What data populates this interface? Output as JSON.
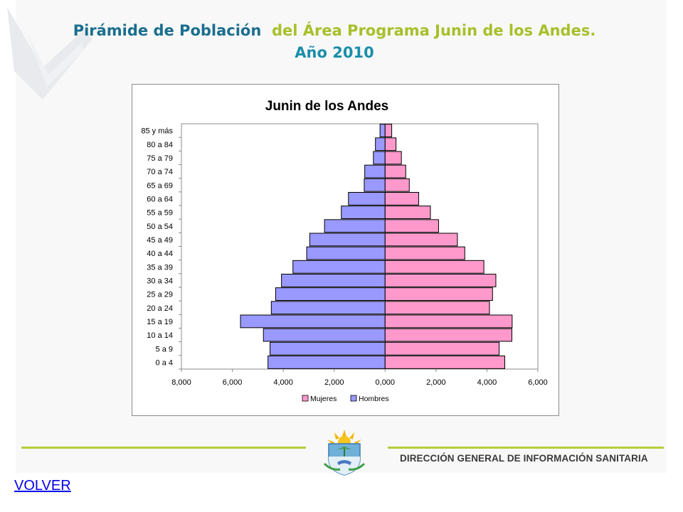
{
  "title": {
    "part1": "Pirámide de Población",
    "part2": "del Área Programa Junin de los Andes.",
    "year": "Año 2010"
  },
  "footer": {
    "org": "DIRECCIÓN GENERAL DE INFORMACIÓN SANITARIA"
  },
  "nav": {
    "back_label": "VOLVER"
  },
  "colors": {
    "mujeres": "#ff99cc",
    "hombres": "#9999ff",
    "accent": "#b7cc3a"
  },
  "chart_data": {
    "type": "bar",
    "orientation": "horizontal-population-pyramid",
    "title": "Junin de los Andes",
    "categories": [
      "0 a 4",
      "5 a 9",
      "10 a 14",
      "15 a 19",
      "20 a 24",
      "25 a 29",
      "30 a 34",
      "35 a 39",
      "40 a 44",
      "45 a 49",
      "50 a 54",
      "55 a 59",
      "60 a 64",
      "65 a 69",
      "70 a 74",
      "75 a 79",
      "80 a 84",
      "85 y más"
    ],
    "series": [
      {
        "name": "Mujeres",
        "values": [
          4700,
          4480,
          4980,
          4990,
          4100,
          4220,
          4350,
          3880,
          3130,
          2840,
          2100,
          1780,
          1320,
          950,
          810,
          640,
          430,
          260
        ]
      },
      {
        "name": "Hombres",
        "values": [
          4600,
          4520,
          4780,
          5680,
          4470,
          4300,
          4070,
          3620,
          3080,
          2960,
          2380,
          1720,
          1440,
          820,
          800,
          460,
          380,
          200
        ]
      }
    ],
    "xlim": [
      -8000,
      6000
    ],
    "xticks": [
      "8,000",
      "6,000",
      "4,000",
      "2,000",
      "0,000",
      "2,000",
      "4,000",
      "6,000"
    ],
    "legend": [
      "Mujeres",
      "Hombres"
    ],
    "legend_position": "bottom",
    "grid": false
  }
}
